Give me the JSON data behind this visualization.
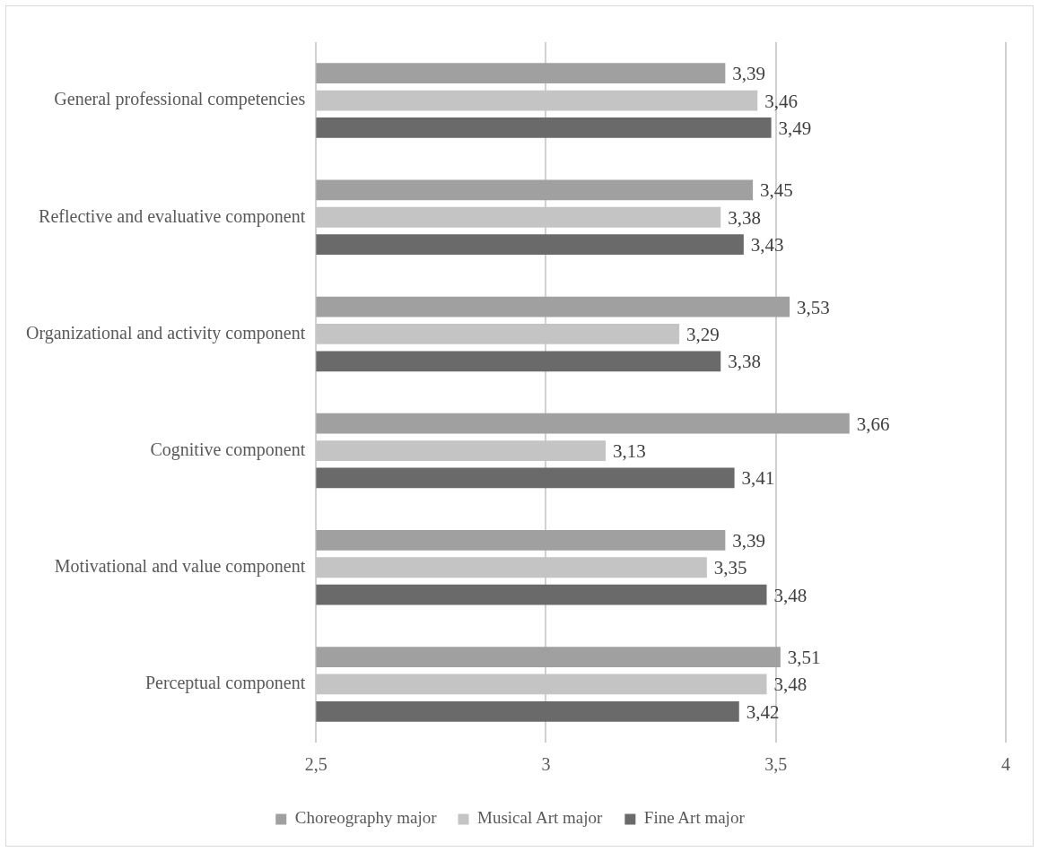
{
  "chart_data": {
    "type": "bar",
    "orientation": "horizontal",
    "categories": [
      "General professional competencies",
      "Reflective and evaluative component",
      "Organizational and activity component",
      "Cognitive component",
      "Motivational and value component",
      "Perceptual component"
    ],
    "series": [
      {
        "name": "Choreography major",
        "color": "#a0a0a0",
        "values": [
          3.39,
          3.45,
          3.53,
          3.66,
          3.39,
          3.51
        ],
        "value_labels": [
          "3,39",
          "3,45",
          "3,53",
          "3,66",
          "3,39",
          "3,51"
        ]
      },
      {
        "name": "Musical Art major",
        "color": "#c4c4c4",
        "values": [
          3.46,
          3.38,
          3.29,
          3.13,
          3.35,
          3.48
        ],
        "value_labels": [
          "3,46",
          "3,38",
          "3,29",
          "3,13",
          "3,35",
          "3,48"
        ]
      },
      {
        "name": "Fine Art major",
        "color": "#6a6a6a",
        "values": [
          3.49,
          3.43,
          3.38,
          3.41,
          3.48,
          3.42
        ],
        "value_labels": [
          "3,49",
          "3,43",
          "3,38",
          "3,41",
          "3,48",
          "3,42"
        ]
      }
    ],
    "xlim": [
      2.5,
      4
    ],
    "xticks": [
      {
        "value": 2.5,
        "label": "2,5"
      },
      3,
      {
        "value": 3.5,
        "label": "3,5"
      },
      4
    ],
    "grid": "x",
    "legend": "bottom"
  }
}
